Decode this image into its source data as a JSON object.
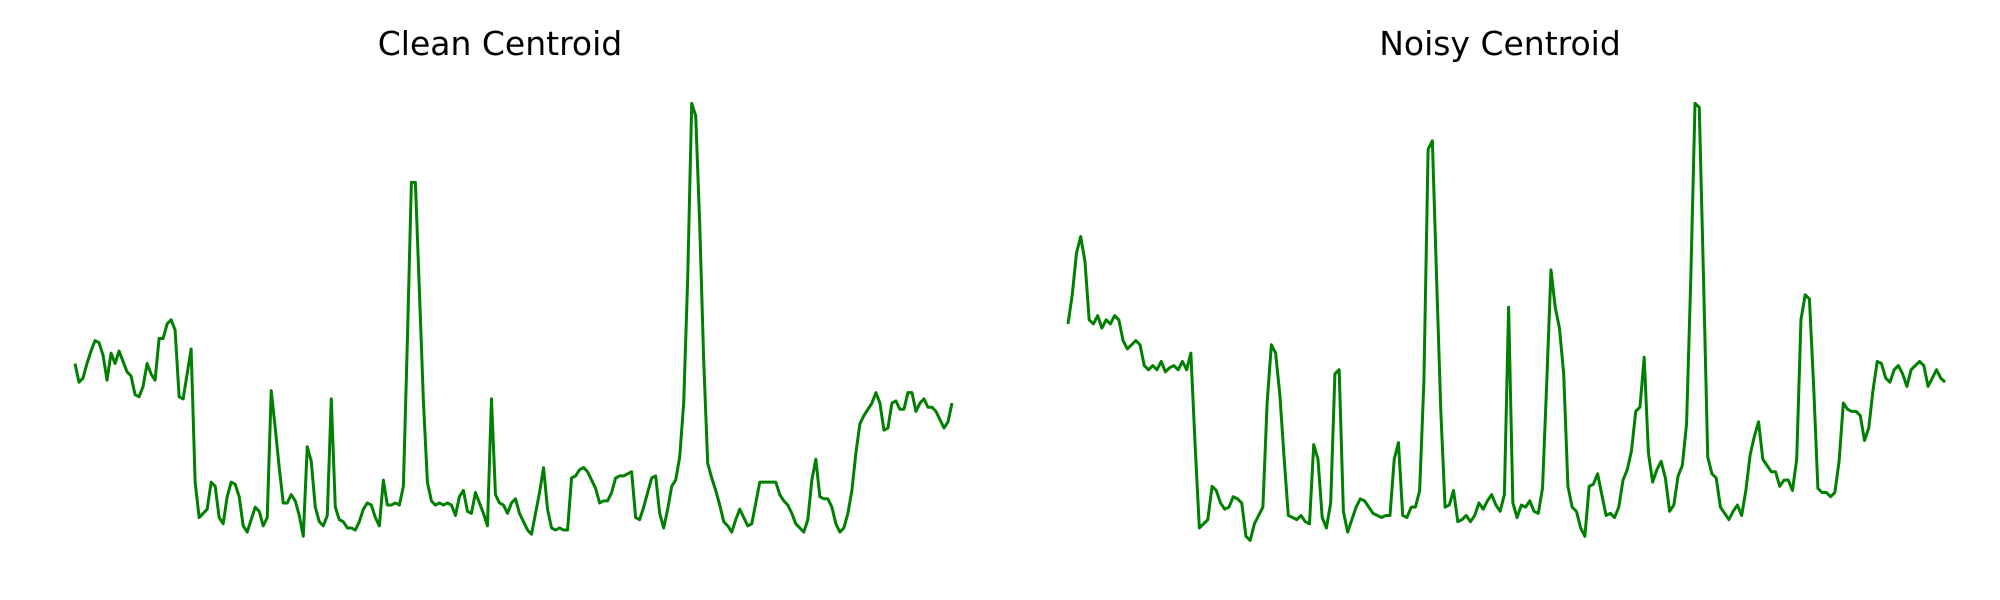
{
  "chart_data": [
    {
      "type": "line",
      "title": "Clean Centroid",
      "xlabel": "",
      "ylabel": "",
      "ylim": [
        -0.065,
        1.04
      ],
      "grid": false,
      "axes_visible": false,
      "color": "#008000",
      "values": [
        0.395,
        0.35,
        0.36,
        0.395,
        0.425,
        0.45,
        0.445,
        0.415,
        0.355,
        0.42,
        0.395,
        0.425,
        0.4,
        0.375,
        0.365,
        0.32,
        0.315,
        0.34,
        0.395,
        0.37,
        0.355,
        0.455,
        0.455,
        0.49,
        0.5,
        0.475,
        0.315,
        0.31,
        0.37,
        0.43,
        0.11,
        0.025,
        0.035,
        0.045,
        0.11,
        0.1,
        0.025,
        0.01,
        0.075,
        0.11,
        0.105,
        0.075,
        0.005,
        -0.01,
        0.02,
        0.05,
        0.04,
        0.005,
        0.025,
        0.33,
        0.24,
        0.145,
        0.06,
        0.06,
        0.08,
        0.065,
        0.03,
        -0.02,
        0.195,
        0.16,
        0.05,
        0.015,
        0.005,
        0.03,
        0.31,
        0.05,
        0.02,
        0.015,
        0.0,
        0.0,
        -0.005,
        0.015,
        0.045,
        0.06,
        0.055,
        0.025,
        0.005,
        0.115,
        0.055,
        0.055,
        0.06,
        0.055,
        0.1,
        0.45,
        0.83,
        0.83,
        0.57,
        0.305,
        0.11,
        0.065,
        0.055,
        0.06,
        0.055,
        0.06,
        0.055,
        0.03,
        0.075,
        0.09,
        0.04,
        0.035,
        0.085,
        0.06,
        0.035,
        0.005,
        0.31,
        0.08,
        0.06,
        0.055,
        0.035,
        0.06,
        0.07,
        0.035,
        0.015,
        -0.005,
        -0.015,
        0.035,
        0.085,
        0.145,
        0.045,
        0.0,
        -0.005,
        0.0,
        -0.005,
        -0.005,
        0.12,
        0.125,
        0.14,
        0.145,
        0.135,
        0.115,
        0.095,
        0.06,
        0.065,
        0.065,
        0.085,
        0.12,
        0.125,
        0.125,
        0.13,
        0.135,
        0.025,
        0.02,
        0.05,
        0.085,
        0.12,
        0.125,
        0.035,
        0.0,
        0.045,
        0.1,
        0.115,
        0.17,
        0.3,
        0.6,
        1.02,
        0.99,
        0.73,
        0.4,
        0.155,
        0.12,
        0.09,
        0.055,
        0.015,
        0.005,
        -0.01,
        0.02,
        0.045,
        0.025,
        0.005,
        0.01,
        0.06,
        0.11,
        0.11,
        0.11,
        0.11,
        0.11,
        0.08,
        0.065,
        0.055,
        0.035,
        0.01,
        0.0,
        -0.01,
        0.02,
        0.115,
        0.165,
        0.075,
        0.07,
        0.07,
        0.05,
        0.01,
        -0.01,
        0.0,
        0.035,
        0.09,
        0.18,
        0.25,
        0.27,
        0.285,
        0.3,
        0.325,
        0.3,
        0.235,
        0.24,
        0.3,
        0.305,
        0.285,
        0.285,
        0.325,
        0.325,
        0.28,
        0.3,
        0.31,
        0.29,
        0.29,
        0.28,
        0.26,
        0.24,
        0.255,
        0.3
      ]
    },
    {
      "type": "line",
      "title": "Noisy Centroid",
      "xlabel": "",
      "ylabel": "",
      "ylim": [
        -0.065,
        1.04
      ],
      "grid": false,
      "axes_visible": false,
      "color": "#008000",
      "values": [
        0.49,
        0.56,
        0.66,
        0.7,
        0.64,
        0.5,
        0.49,
        0.51,
        0.48,
        0.5,
        0.49,
        0.51,
        0.5,
        0.45,
        0.43,
        0.44,
        0.45,
        0.44,
        0.39,
        0.38,
        0.39,
        0.38,
        0.4,
        0.375,
        0.385,
        0.39,
        0.38,
        0.4,
        0.38,
        0.42,
        0.2,
        0.0,
        0.01,
        0.02,
        0.1,
        0.09,
        0.06,
        0.045,
        0.05,
        0.075,
        0.07,
        0.06,
        -0.02,
        -0.03,
        0.01,
        0.03,
        0.05,
        0.3,
        0.44,
        0.42,
        0.32,
        0.17,
        0.03,
        0.025,
        0.02,
        0.03,
        0.015,
        0.01,
        0.2,
        0.165,
        0.025,
        0.0,
        0.06,
        0.37,
        0.38,
        0.04,
        -0.01,
        0.02,
        0.05,
        0.07,
        0.065,
        0.05,
        0.035,
        0.03,
        0.025,
        0.03,
        0.03,
        0.165,
        0.205,
        0.03,
        0.025,
        0.05,
        0.05,
        0.09,
        0.35,
        0.91,
        0.93,
        0.6,
        0.28,
        0.05,
        0.055,
        0.09,
        0.015,
        0.02,
        0.03,
        0.015,
        0.03,
        0.06,
        0.045,
        0.065,
        0.08,
        0.055,
        0.04,
        0.08,
        0.53,
        0.06,
        0.025,
        0.055,
        0.05,
        0.065,
        0.04,
        0.035,
        0.095,
        0.35,
        0.62,
        0.53,
        0.48,
        0.37,
        0.1,
        0.05,
        0.04,
        0.0,
        -0.02,
        0.1,
        0.105,
        0.13,
        0.08,
        0.03,
        0.035,
        0.025,
        0.05,
        0.115,
        0.14,
        0.185,
        0.28,
        0.29,
        0.41,
        0.18,
        0.11,
        0.14,
        0.16,
        0.12,
        0.04,
        0.055,
        0.125,
        0.15,
        0.25,
        0.6,
        1.02,
        1.01,
        0.6,
        0.17,
        0.13,
        0.12,
        0.05,
        0.035,
        0.02,
        0.04,
        0.055,
        0.03,
        0.09,
        0.175,
        0.22,
        0.255,
        0.165,
        0.15,
        0.135,
        0.135,
        0.1,
        0.115,
        0.115,
        0.09,
        0.165,
        0.5,
        0.56,
        0.55,
        0.34,
        0.095,
        0.085,
        0.085,
        0.075,
        0.085,
        0.16,
        0.3,
        0.285,
        0.28,
        0.28,
        0.27,
        0.21,
        0.24,
        0.33,
        0.4,
        0.395,
        0.36,
        0.35,
        0.38,
        0.39,
        0.37,
        0.34,
        0.38,
        0.39,
        0.4,
        0.39,
        0.34,
        0.36,
        0.38,
        0.36,
        0.35
      ]
    }
  ]
}
